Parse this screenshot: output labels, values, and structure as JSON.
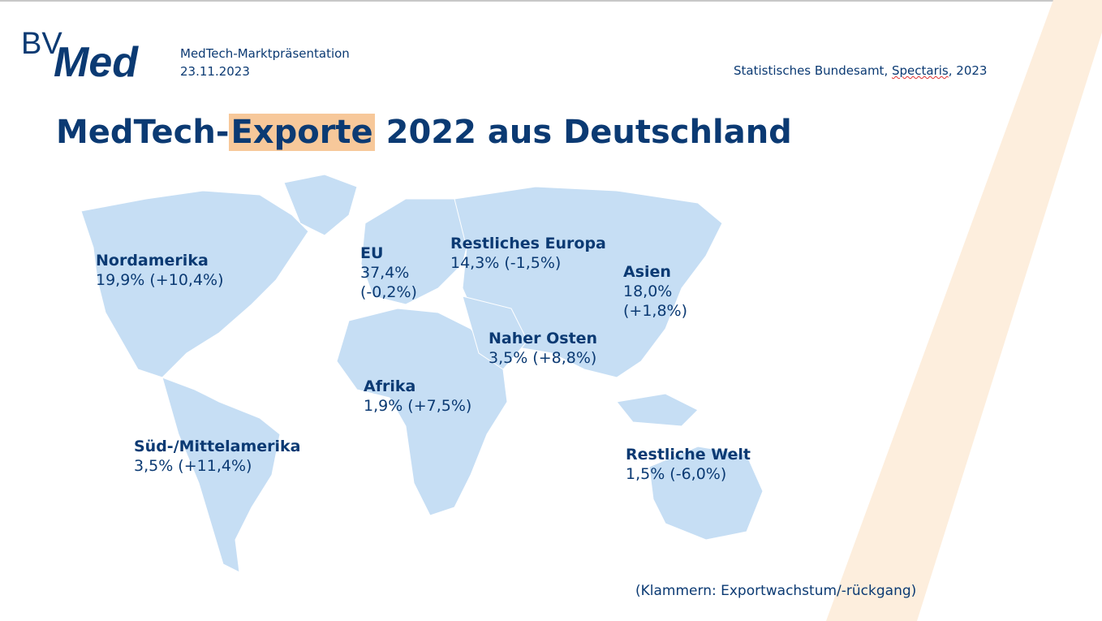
{
  "header": {
    "logo_text": "BVMed",
    "presentation_title": "MedTech-Marktpräsentation",
    "date": "23.11.2023",
    "source_prefix": "Statistisches Bundesamt, ",
    "source_spectaris": "Spectaris",
    "source_suffix": ", 2023"
  },
  "title": {
    "part1": "MedTech-",
    "highlight": "Exporte",
    "part2": " 2022 aus Deutschland"
  },
  "regions": [
    {
      "name": "Nordamerika",
      "line1": "19,9% (+10,4%)"
    },
    {
      "name": "EU",
      "line1": "37,4%",
      "line2": "(-0,2%)"
    },
    {
      "name": "Restliches Europa",
      "line1": "14,3% (-1,5%)"
    },
    {
      "name": "Asien",
      "line1": "18,0%",
      "line2": "(+1,8%)"
    },
    {
      "name": "Naher Osten",
      "line1": "3,5% (+8,8%)"
    },
    {
      "name": "Afrika",
      "line1": "1,9% (+7,5%)"
    },
    {
      "name": "Süd-/Mittelamerika",
      "line1": "3,5% (+11,4%)"
    },
    {
      "name": "Restliche Welt",
      "line1": "1,5% (-6,0%)"
    }
  ],
  "footnote": "(Klammern: Exportwachstum/-rückgang)",
  "colors": {
    "navy": "#0b3a73",
    "map": "#c6def4",
    "highlight": "#f7c89a",
    "stripe": "#fdeedd"
  }
}
